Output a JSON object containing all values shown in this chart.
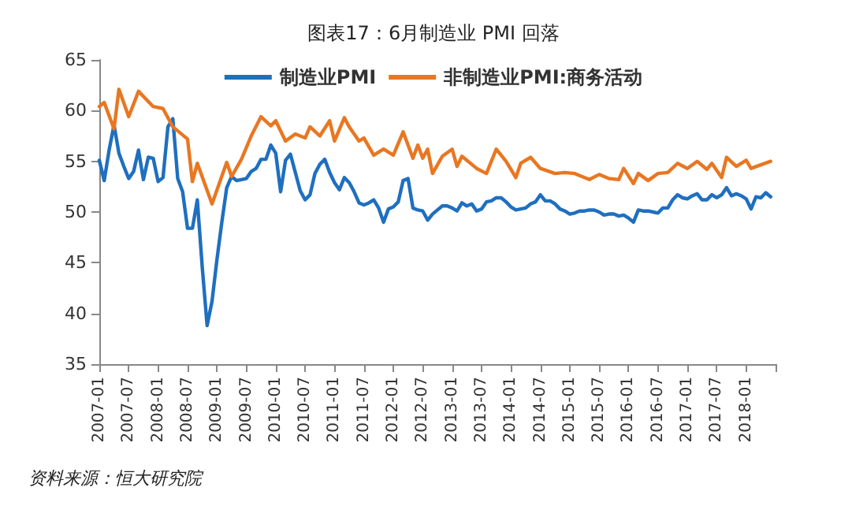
{
  "chart_data": {
    "type": "line",
    "title": "图表17：6月制造业 PMI 回落",
    "annotations": [
      "资料来源：恒大研究院"
    ],
    "x": [
      "2007-01",
      "2007-02",
      "2007-03",
      "2007-04",
      "2007-05",
      "2007-06",
      "2007-07",
      "2007-08",
      "2007-09",
      "2007-10",
      "2007-11",
      "2007-12",
      "2008-01",
      "2008-02",
      "2008-03",
      "2008-04",
      "2008-05",
      "2008-06",
      "2008-07",
      "2008-08",
      "2008-09",
      "2008-10",
      "2008-11",
      "2008-12",
      "2009-01",
      "2009-02",
      "2009-03",
      "2009-04",
      "2009-05",
      "2009-06",
      "2009-07",
      "2009-08",
      "2009-09",
      "2009-10",
      "2009-11",
      "2009-12",
      "2010-01",
      "2010-02",
      "2010-03",
      "2010-04",
      "2010-05",
      "2010-06",
      "2010-07",
      "2010-08",
      "2010-09",
      "2010-10",
      "2010-11",
      "2010-12",
      "2011-01",
      "2011-02",
      "2011-03",
      "2011-04",
      "2011-05",
      "2011-06",
      "2011-07",
      "2011-08",
      "2011-09",
      "2011-10",
      "2011-11",
      "2011-12",
      "2012-01",
      "2012-02",
      "2012-03",
      "2012-04",
      "2012-05",
      "2012-06",
      "2012-07",
      "2012-08",
      "2012-09",
      "2012-10",
      "2012-11",
      "2012-12",
      "2013-01",
      "2013-02",
      "2013-03",
      "2013-04",
      "2013-05",
      "2013-06",
      "2013-07",
      "2013-08",
      "2013-09",
      "2013-10",
      "2013-11",
      "2013-12",
      "2014-01",
      "2014-02",
      "2014-03",
      "2014-04",
      "2014-05",
      "2014-06",
      "2014-07",
      "2014-08",
      "2014-09",
      "2014-10",
      "2014-11",
      "2014-12",
      "2015-01",
      "2015-02",
      "2015-03",
      "2015-04",
      "2015-05",
      "2015-06",
      "2015-07",
      "2015-08",
      "2015-09",
      "2015-10",
      "2015-11",
      "2015-12",
      "2016-01",
      "2016-02",
      "2016-03",
      "2016-04",
      "2016-05",
      "2016-06",
      "2016-07",
      "2016-08",
      "2016-09",
      "2016-10",
      "2016-11",
      "2016-12",
      "2017-01",
      "2017-02",
      "2017-03",
      "2017-04",
      "2017-05",
      "2017-06",
      "2017-07",
      "2017-08",
      "2017-09",
      "2017-10",
      "2017-11",
      "2017-12",
      "2018-01",
      "2018-02",
      "2018-03",
      "2018-04",
      "2018-05",
      "2018-06"
    ],
    "series": [
      {
        "name": "制造业PMI",
        "color": "#1f6fbf",
        "values": [
          55.1,
          53.1,
          56.1,
          58.6,
          55.8,
          54.5,
          53.3,
          54.0,
          56.1,
          53.2,
          55.4,
          55.3,
          53.0,
          53.4,
          58.4,
          59.2,
          53.3,
          52.0,
          48.4,
          48.4,
          51.2,
          44.6,
          38.8,
          41.2,
          45.3,
          49.0,
          52.4,
          53.5,
          53.1,
          53.2,
          53.3,
          54.0,
          54.3,
          55.2,
          55.2,
          56.6,
          55.8,
          52.0,
          55.1,
          55.7,
          53.9,
          52.1,
          51.2,
          51.7,
          53.8,
          54.7,
          55.2,
          53.9,
          52.9,
          52.2,
          53.4,
          52.9,
          52.0,
          50.9,
          50.7,
          50.9,
          51.2,
          50.4,
          49.0,
          50.3,
          50.5,
          51.0,
          53.1,
          53.3,
          50.4,
          50.2,
          50.1,
          49.2,
          49.8,
          50.2,
          50.6,
          50.6,
          50.4,
          50.1,
          50.9,
          50.6,
          50.8,
          50.1,
          50.3,
          51.0,
          51.1,
          51.4,
          51.4,
          51.0,
          50.5,
          50.2,
          50.3,
          50.4,
          50.8,
          51.0,
          51.7,
          51.1,
          51.1,
          50.8,
          50.3,
          50.1,
          49.8,
          49.9,
          50.1,
          50.1,
          50.2,
          50.2,
          50.0,
          49.7,
          49.8,
          49.8,
          49.6,
          49.7,
          49.4,
          49.0,
          50.2,
          50.1,
          50.1,
          50.0,
          49.9,
          50.4,
          50.4,
          51.2,
          51.7,
          51.4,
          51.3,
          51.6,
          51.8,
          51.2,
          51.2,
          51.7,
          51.4,
          51.7,
          52.4,
          51.6,
          51.8,
          51.6,
          51.3,
          50.3,
          51.5,
          51.4,
          51.9,
          51.5
        ]
      },
      {
        "name": "非制造业PMI:商务活动",
        "color": "#e87722",
        "x": [
          "2007-01",
          "2007-02",
          "2007-04",
          "2007-05",
          "2007-07",
          "2007-09",
          "2007-12",
          "2008-02",
          "2008-04",
          "2008-07",
          "2008-08",
          "2008-09",
          "2008-12",
          "2009-03",
          "2009-04",
          "2009-06",
          "2009-08",
          "2009-10",
          "2009-12",
          "2010-01",
          "2010-03",
          "2010-05",
          "2010-07",
          "2010-08",
          "2010-10",
          "2010-12",
          "2011-01",
          "2011-03",
          "2011-04",
          "2011-06",
          "2011-07",
          "2011-09",
          "2011-11",
          "2012-01",
          "2012-03",
          "2012-05",
          "2012-06",
          "2012-07",
          "2012-08",
          "2012-09",
          "2012-11",
          "2013-01",
          "2013-02",
          "2013-03",
          "2013-06",
          "2013-08",
          "2013-10",
          "2013-12",
          "2014-02",
          "2014-03",
          "2014-05",
          "2014-07",
          "2014-10",
          "2014-12",
          "2015-02",
          "2015-03",
          "2015-05",
          "2015-07",
          "2015-09",
          "2015-11",
          "2015-12",
          "2016-02",
          "2016-03",
          "2016-05",
          "2016-07",
          "2016-09",
          "2016-11",
          "2017-01",
          "2017-03",
          "2017-05",
          "2017-06",
          "2017-08",
          "2017-09",
          "2017-11",
          "2018-01",
          "2018-02",
          "2018-06"
        ],
        "values": [
          60.4,
          60.8,
          58.2,
          62.1,
          59.4,
          61.9,
          60.4,
          60.2,
          58.4,
          57.2,
          53.0,
          54.8,
          50.8,
          54.9,
          53.5,
          55.2,
          57.5,
          59.4,
          58.5,
          59.0,
          57.0,
          57.7,
          57.3,
          58.4,
          57.5,
          59.0,
          57.0,
          59.3,
          58.4,
          57.0,
          57.3,
          55.6,
          56.2,
          55.6,
          57.9,
          55.3,
          56.6,
          55.3,
          56.2,
          53.8,
          55.5,
          56.2,
          54.5,
          55.5,
          54.3,
          53.8,
          56.2,
          55.0,
          53.4,
          54.8,
          55.4,
          54.3,
          53.8,
          53.9,
          53.8,
          53.6,
          53.2,
          53.7,
          53.3,
          53.2,
          54.3,
          52.8,
          53.8,
          53.1,
          53.8,
          53.9,
          54.8,
          54.3,
          55.0,
          54.2,
          54.8,
          53.4,
          55.4,
          54.5,
          55.1,
          54.3,
          55.0
        ]
      }
    ],
    "xlim": [
      "2007-01",
      "2018-07"
    ],
    "xticks": [
      "2007-01",
      "2007-07",
      "2008-01",
      "2008-07",
      "2009-01",
      "2009-07",
      "2010-01",
      "2010-07",
      "2011-01",
      "2011-07",
      "2012-01",
      "2012-07",
      "2013-01",
      "2013-07",
      "2014-01",
      "2014-07",
      "2015-01",
      "2015-07",
      "2016-01",
      "2016-07",
      "2017-01",
      "2017-07",
      "2018-01",
      {
        "value": "2018-07",
        "label": null
      }
    ],
    "ylim": [
      35,
      65
    ],
    "yticks": [
      35,
      40,
      45,
      50,
      55,
      60,
      65
    ],
    "grid": false,
    "legend": "top",
    "marker": "none",
    "line_style": "solid"
  }
}
